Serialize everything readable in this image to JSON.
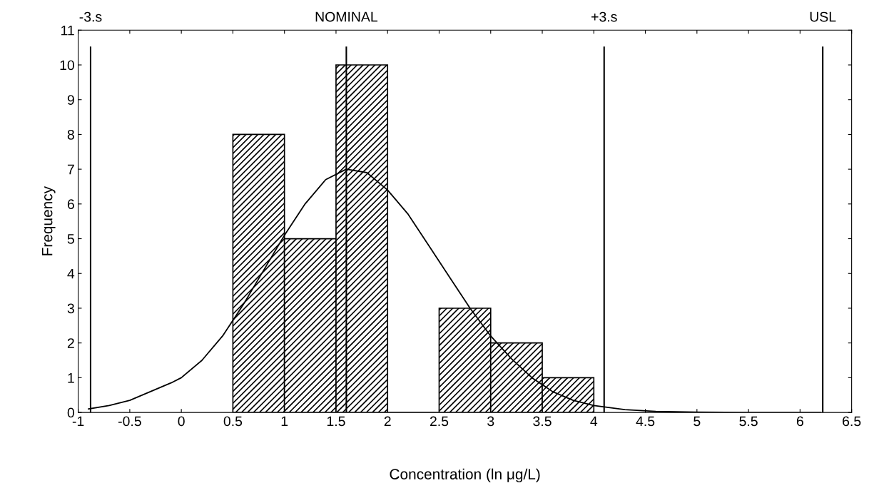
{
  "chart_data": {
    "type": "histogram",
    "xlabel": "Concentration (ln μg/L)",
    "ylabel": "Frequency",
    "bins": [
      0.5,
      1.0,
      1.5,
      2.0,
      2.5,
      3.0,
      3.5,
      4.0
    ],
    "values": [
      8,
      5,
      10,
      0,
      3,
      2,
      1
    ],
    "color": "#000000",
    "series": [
      {
        "type": "line",
        "color": "#000000",
        "x": [
          -0.9,
          -0.7,
          -0.5,
          -0.3,
          -0.1,
          0,
          0.2,
          0.4,
          0.6,
          0.8,
          1.0,
          1.2,
          1.4,
          1.6,
          1.8,
          2.0,
          2.2,
          2.4,
          2.6,
          2.8,
          3.0,
          3.2,
          3.4,
          3.6,
          3.8,
          4.0,
          4.3,
          4.6,
          5.0,
          5.5,
          6.2
        ],
        "values": [
          0.1,
          0.2,
          0.35,
          0.6,
          0.85,
          1.0,
          1.5,
          2.2,
          3.1,
          4.1,
          5.1,
          6.0,
          6.7,
          7.0,
          6.9,
          6.4,
          5.7,
          4.8,
          3.9,
          3.0,
          2.2,
          1.55,
          1.0,
          0.6,
          0.35,
          0.2,
          0.08,
          0.03,
          0.01,
          0,
          0
        ]
      }
    ],
    "ref_lines": [
      {
        "axis": "x",
        "value": -0.88,
        "label": "-3.s",
        "color": "#000000"
      },
      {
        "axis": "x",
        "value": 1.6,
        "label": "NOMINAL",
        "color": "#000000"
      },
      {
        "axis": "x",
        "value": 4.1,
        "label": "+3.s",
        "color": "#000000"
      },
      {
        "axis": "x",
        "value": 6.22,
        "label": "USL",
        "color": "#000000"
      }
    ],
    "xlim": [
      -1,
      6.5
    ],
    "xticks": [
      -1,
      -0.5,
      0,
      0.5,
      1,
      1.5,
      2,
      2.5,
      3,
      3.5,
      4,
      4.5,
      5,
      5.5,
      6,
      6.5
    ],
    "ylim": [
      0,
      11
    ],
    "yticks": [
      0,
      1,
      2,
      3,
      4,
      5,
      6,
      7,
      8,
      9,
      10,
      11
    ],
    "grid": false,
    "legend": false
  }
}
